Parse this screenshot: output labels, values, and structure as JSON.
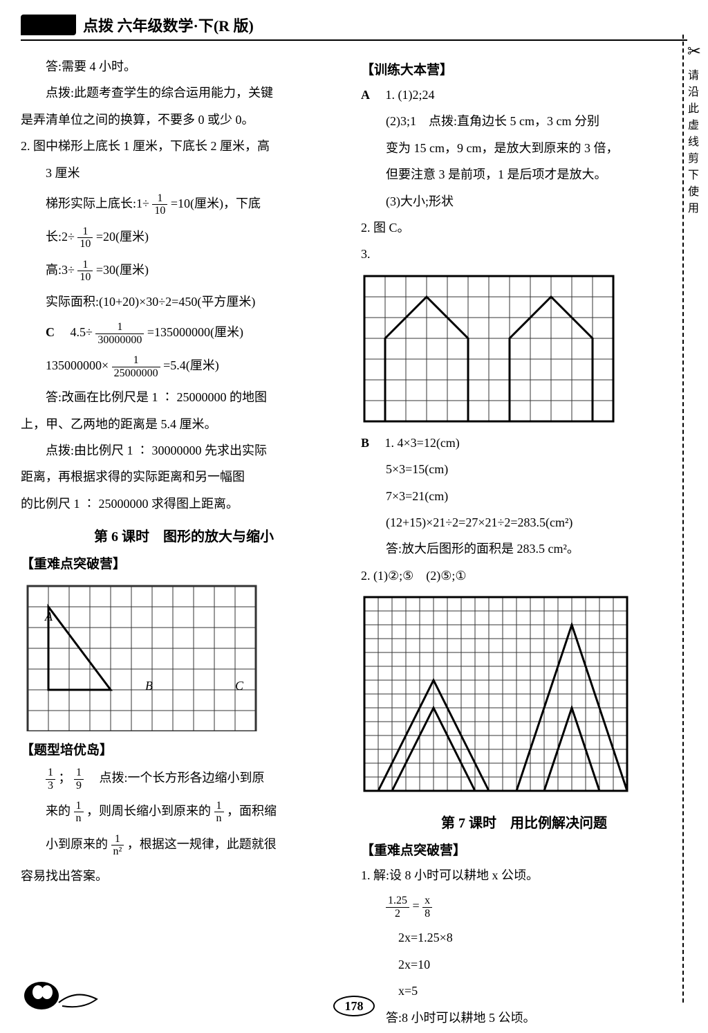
{
  "header": {
    "title": "点拨 六年级数学·下(R 版)"
  },
  "cutNote": "请沿此虚线剪下使用",
  "left": {
    "l1": "答:需要 4 小时。",
    "l2": "点拨:此题考查学生的综合运用能力，关键",
    "l3": "是弄清单位之间的换算，不要多 0 或少 0。",
    "l4": "2. 图中梯形上底长 1 厘米，下底长 2 厘米，高",
    "l5": "3 厘米",
    "l6_pre": "梯形实际上底长:1÷",
    "l6_post": "=10(厘米)，下底",
    "l7_pre": "长:2÷",
    "l7_post": "=20(厘米)",
    "l8_pre": "高:3÷",
    "l8_post": "=30(厘米)",
    "l9": "实际面积:(10+20)×30÷2=450(平方厘米)",
    "l10_label": "C",
    "l10_pre": "4.5÷",
    "l10_post": "=135000000(厘米)",
    "l11_pre": "135000000×",
    "l11_post": "=5.4(厘米)",
    "l12": "答:改画在比例尺是 1 ∶ 25000000 的地图",
    "l13": "上，甲、乙两地的距离是 5.4 厘米。",
    "l14": "点拨:由比例尺 1 ∶ 30000000 先求出实际",
    "l15": "距离，再根据求得的实际距离和另一幅图",
    "l16": "的比例尺 1 ∶ 25000000 求得图上距离。",
    "section6": "第 6 课时　图形的放大与缩小",
    "bracket1": "【重难点突破营】",
    "bracket2": "【题型培优岛】",
    "b1_pre": "；",
    "b1_post": "　点拨:一个长方形各边缩小到原",
    "b2_pre": "来的",
    "b2_mid": "，则周长缩小到原来的",
    "b2_post": "，面积缩",
    "b3_pre": "小到原来的",
    "b3_post": "，根据这一规律，此题就很",
    "b4": "容易找出答案。",
    "gridLabels": {
      "A": "A",
      "B": "B",
      "C": "C"
    }
  },
  "right": {
    "bracket1": "【训练大本营】",
    "a1_label": "A",
    "a1": "1. (1)2;24",
    "a2": "(2)3;1　点拨:直角边长 5 cm，3 cm 分别",
    "a3": "变为 15 cm，9 cm，是放大到原来的 3 倍，",
    "a4": "但要注意 3 是前项，1 是后项才是放大。",
    "a5": "(3)大小;形状",
    "a6": "2. 图 C。",
    "a7": "3.",
    "b_label": "B",
    "b1": "1. 4×3=12(cm)",
    "b2": "5×3=15(cm)",
    "b3": "7×3=21(cm)",
    "b4": "(12+15)×21÷2=27×21÷2=283.5(cm²)",
    "b5": "答:放大后图形的面积是 283.5 cm²。",
    "b6": "2. (1)②;⑤　(2)⑤;①",
    "section7": "第 7 课时　用比例解决问题",
    "bracket2": "【重难点突破营】",
    "c1": "1. 解:设 8 小时可以耕地 x 公顷。",
    "c2_eq": "=",
    "c3": "2x=1.25×8",
    "c4": "2x=10",
    "c5": "x=5",
    "c6": "答:8 小时可以耕地 5 公顷。"
  },
  "fractions": {
    "tenth": {
      "num": "1",
      "den": "10"
    },
    "thirty_mil": {
      "num": "1",
      "den": "30000000"
    },
    "twentyfive_mil": {
      "num": "1",
      "den": "25000000"
    },
    "third": {
      "num": "1",
      "den": "3"
    },
    "ninth": {
      "num": "1",
      "den": "9"
    },
    "n": {
      "num": "1",
      "den": "n"
    },
    "n2": {
      "num": "1",
      "den": "n²"
    },
    "eq_left": {
      "num": "1.25",
      "den": "2"
    },
    "eq_right": {
      "num": "x",
      "den": "8"
    }
  },
  "pageNumber": "178",
  "grids": {
    "g1": {
      "cols": 11,
      "rows": 7,
      "cell": 30
    },
    "g2": {
      "cols": 12,
      "rows": 7,
      "cell": 30
    },
    "g3": {
      "cols": 19,
      "rows": 14,
      "cell": 20
    }
  },
  "colors": {
    "text": "#000000",
    "bg": "#ffffff",
    "gridLine": "#333333",
    "shapeLine": "#000000"
  }
}
